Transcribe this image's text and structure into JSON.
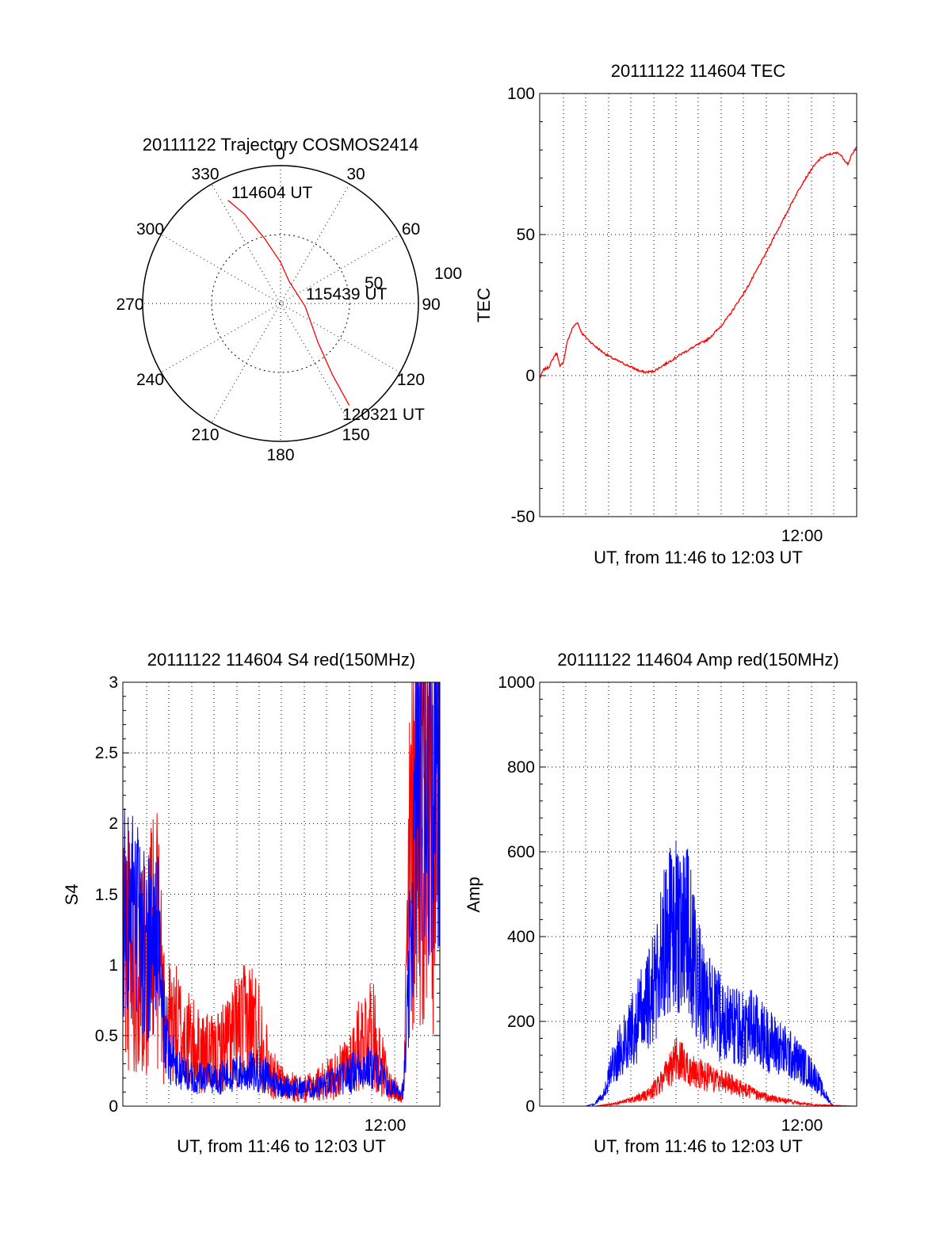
{
  "chart_data": [
    {
      "type": "polar-trajectory",
      "title": "20111122 Trajectory COSMOS2414",
      "angle_labels": [
        "0",
        "30",
        "60",
        "90",
        "120",
        "150",
        "180",
        "210",
        "240",
        "270",
        "300",
        "330"
      ],
      "radial_labels": [
        "50",
        "100"
      ],
      "rmax": 100,
      "trajectory": {
        "color": "#ff0000",
        "points": [
          {
            "az": 333,
            "zen": 84
          },
          {
            "az": 338,
            "zen": 70
          },
          {
            "az": 346,
            "zen": 49
          },
          {
            "az": 0,
            "zen": 30
          },
          {
            "az": 22,
            "zen": 17
          },
          {
            "az": 97,
            "zen": 18
          },
          {
            "az": 136,
            "zen": 39
          },
          {
            "az": 144,
            "zen": 64
          },
          {
            "az": 146,
            "zen": 89
          }
        ]
      },
      "annotations": [
        "114604 UT",
        "115439 UT",
        "120321 UT"
      ]
    },
    {
      "type": "line",
      "title": "20111122 114604 TEC",
      "xlabel": "UT, from 11:46 to 12:03 UT",
      "ylabel": "TEC",
      "xlim": [
        0,
        17.28
      ],
      "ylim": [
        -50,
        100
      ],
      "yticks": [
        "-50",
        "0",
        "50",
        "100"
      ],
      "xtick_label": "12:00",
      "grid": true,
      "series": [
        {
          "color": "#ff0000",
          "x": [
            0,
            0.2,
            0.5,
            0.8,
            0.95,
            1.1,
            1.3,
            1.5,
            1.8,
            2.05,
            2.3,
            2.6,
            3,
            3.5,
            4,
            4.5,
            5,
            5.5,
            5.8,
            6.2,
            6.7,
            7.2,
            7.8,
            8.5,
            9.2,
            9.8,
            10.3,
            10.8,
            11.3,
            11.8,
            12.3,
            12.8,
            13.3,
            13.8,
            14.3,
            14.8,
            15.3,
            15.8,
            16.3,
            16.8,
            17.0,
            17.28
          ],
          "y": [
            -1,
            2,
            3,
            7,
            8,
            3,
            5,
            12,
            17,
            19,
            15,
            13,
            10.5,
            8,
            6,
            4.5,
            3,
            1.5,
            1.2,
            1.5,
            3.5,
            5.5,
            8,
            10.5,
            13,
            17,
            21,
            26,
            31,
            37,
            43,
            49.5,
            55.5,
            62,
            68,
            73,
            77,
            78.5,
            79,
            75,
            78,
            81
          ]
        }
      ]
    },
    {
      "type": "line",
      "title": "20111122 114604 S4 red(150MHz)",
      "xlabel": "UT, from 11:46 to 12:03 UT",
      "ylabel": "S4",
      "xlim": [
        0,
        17.28
      ],
      "ylim": [
        0,
        3
      ],
      "yticks": [
        "0",
        "0.5",
        "1",
        "1.5",
        "2",
        "2.5",
        "3"
      ],
      "xtick_label": "12:00",
      "grid": true,
      "series": [
        {
          "color": "#0000ff",
          "x": [
            0,
            1,
            2,
            2.2,
            2.5,
            3,
            4,
            5,
            6,
            7,
            8,
            9,
            10,
            11,
            12,
            13,
            14,
            14.5,
            15.3,
            15.6,
            16,
            17.28
          ],
          "y": [
            1.4,
            1.2,
            1.1,
            0.6,
            0.4,
            0.25,
            0.2,
            0.2,
            0.22,
            0.25,
            0.2,
            0.13,
            0.12,
            0.15,
            0.2,
            0.28,
            0.25,
            0.12,
            0.12,
            0.8,
            2.2,
            2.8
          ]
        },
        {
          "color": "#ff0000",
          "x": [
            0,
            1,
            2,
            2.2,
            2.5,
            3,
            4,
            5,
            6,
            7,
            7.5,
            8,
            8.5,
            9,
            10,
            11,
            12,
            13,
            13.5,
            14,
            14.5,
            15,
            15.3,
            15.6,
            16,
            17.28
          ],
          "y": [
            1.2,
            1.0,
            1.2,
            0.7,
            0.6,
            0.55,
            0.4,
            0.35,
            0.5,
            0.6,
            0.5,
            0.25,
            0.18,
            0.14,
            0.12,
            0.18,
            0.25,
            0.45,
            0.55,
            0.35,
            0.15,
            0.1,
            0.1,
            1.5,
            2.5,
            2.5
          ]
        }
      ]
    },
    {
      "type": "line",
      "title": "20111122 114604 Amp red(150MHz)",
      "xlabel": "UT, from 11:46 to 12:03 UT",
      "ylabel": "Amp",
      "xlim": [
        0,
        17.28
      ],
      "ylim": [
        0,
        1000
      ],
      "yticks": [
        "0",
        "200",
        "400",
        "600",
        "800",
        "1000"
      ],
      "xtick_label": "12:00",
      "grid": true,
      "series": [
        {
          "color": "#0000ff",
          "x": [
            0,
            2.5,
            3,
            3.5,
            4,
            5,
            6,
            6.5,
            7,
            8,
            8.5,
            9,
            10,
            11,
            11.5,
            12,
            13,
            14,
            15,
            15.5,
            16,
            17.28
          ],
          "y": [
            0,
            0,
            5,
            30,
            100,
            180,
            250,
            330,
            420,
            420,
            320,
            250,
            200,
            180,
            190,
            170,
            140,
            110,
            70,
            30,
            0,
            0
          ]
        },
        {
          "color": "#ff0000",
          "x": [
            0,
            3,
            4,
            5,
            6,
            7,
            7.5,
            8,
            9,
            10,
            11,
            12,
            13,
            14,
            15,
            17.28
          ],
          "y": [
            0,
            0,
            5,
            15,
            30,
            80,
            120,
            90,
            70,
            60,
            40,
            25,
            15,
            8,
            3,
            0
          ]
        }
      ]
    }
  ]
}
